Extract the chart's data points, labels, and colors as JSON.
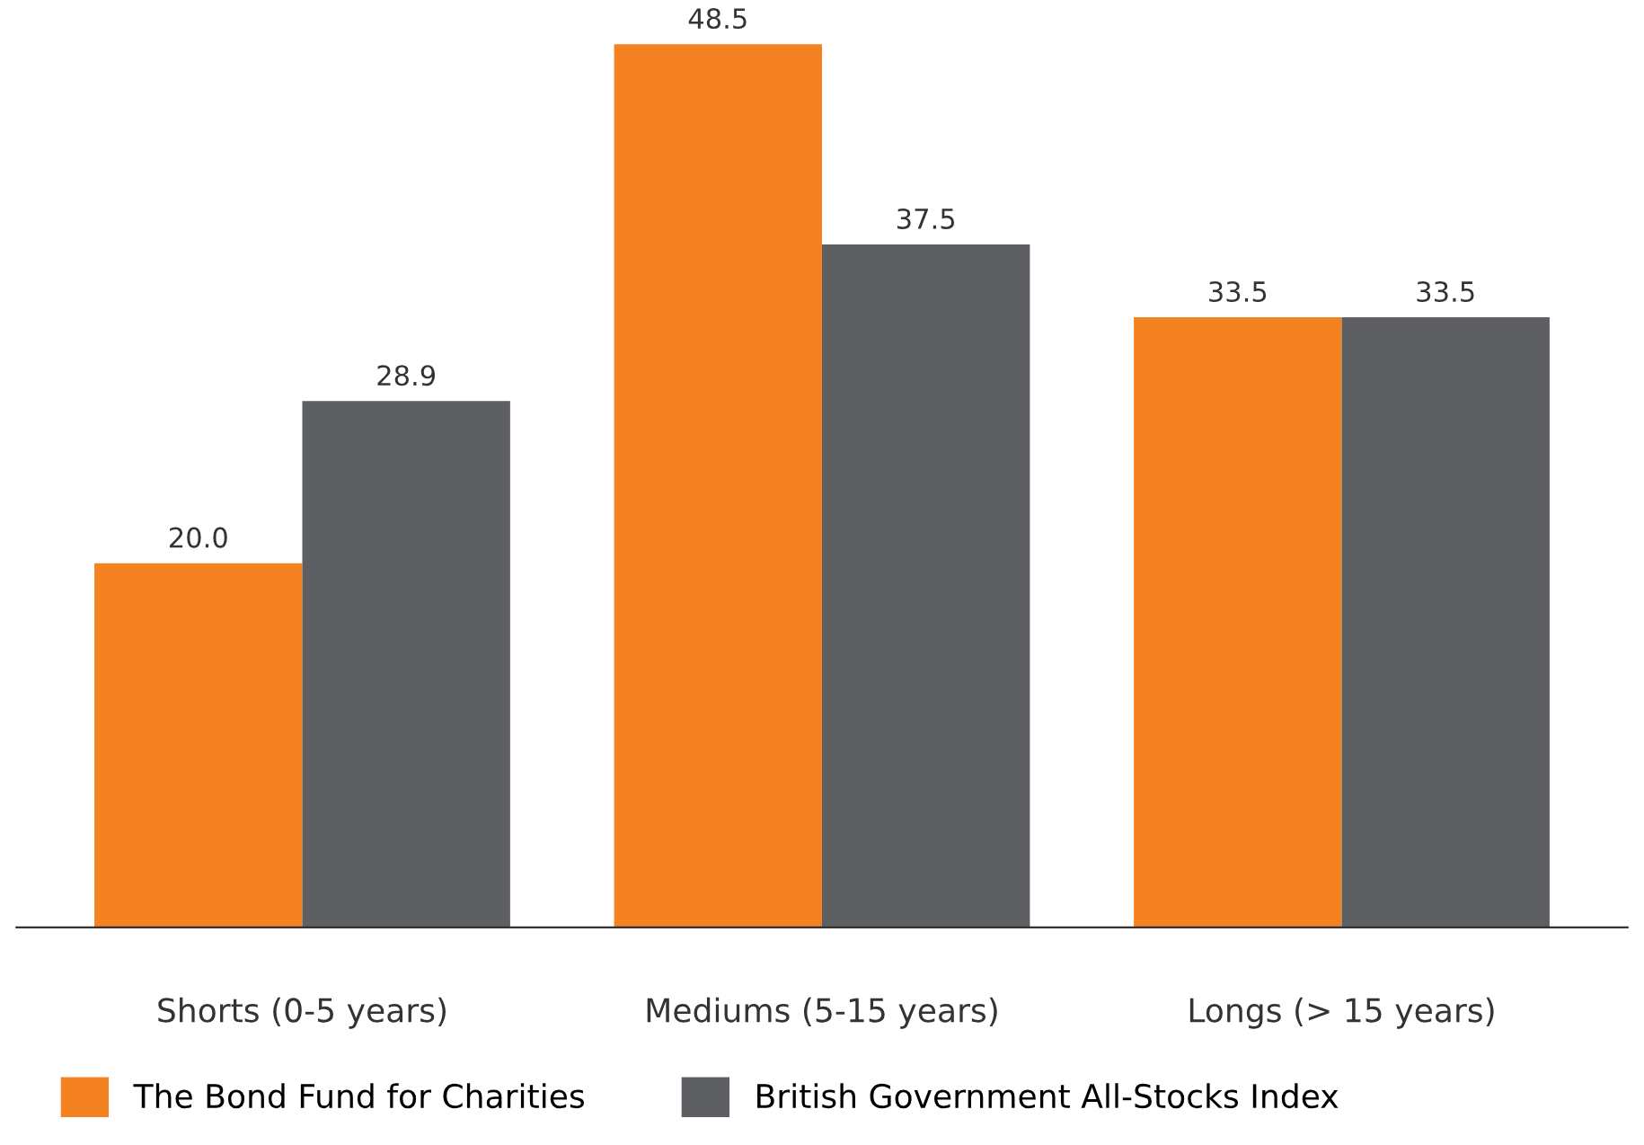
{
  "chart_data": {
    "type": "bar",
    "categories": [
      "Shorts (0-5 years)",
      "Mediums (5-15 years)",
      "Longs (> 15 years)"
    ],
    "series": [
      {
        "name": "The Bond Fund for Charities",
        "color": "#f58220",
        "values": [
          20.0,
          48.5,
          33.5
        ],
        "value_labels": [
          "20.0",
          "48.5",
          "33.5"
        ]
      },
      {
        "name": "British Government All-Stocks Index",
        "color": "#5e5f63",
        "values": [
          28.9,
          37.5,
          33.5
        ],
        "value_labels": [
          "28.9",
          "37.5",
          "33.5"
        ]
      }
    ],
    "grid": false,
    "legend": "bottom left"
  }
}
